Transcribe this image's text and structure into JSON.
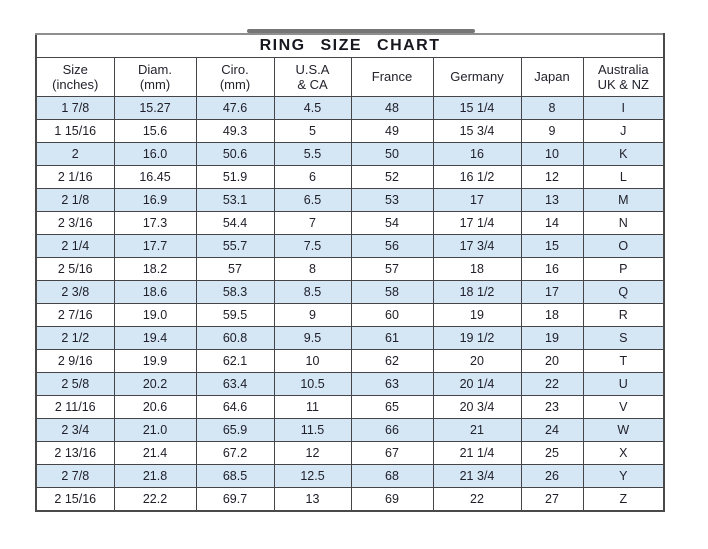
{
  "title": "RING SIZE CHART",
  "colors": {
    "stripe_row": "#d5e6f5",
    "border": "#444449",
    "text": "#20202a"
  },
  "chart_data": {
    "type": "table",
    "title": "RING SIZE CHART",
    "columns": [
      "Size (inches)",
      "Diam. (mm)",
      "Ciro. (mm)",
      "U.S.A & CA",
      "France",
      "Germany",
      "Japan",
      "Australia UK & NZ"
    ],
    "column_header_lines": [
      [
        "Size",
        "(inches)"
      ],
      [
        "Diam.",
        "(mm)"
      ],
      [
        "Ciro.",
        "(mm)"
      ],
      [
        "U.S.A",
        "& CA"
      ],
      [
        "France"
      ],
      [
        "Germany"
      ],
      [
        "Japan"
      ],
      [
        "Australia",
        "UK & NZ"
      ]
    ],
    "rows": [
      [
        "1 7/8",
        "15.27",
        "47.6",
        "4.5",
        "48",
        "15 1/4",
        "8",
        "I"
      ],
      [
        "1 15/16",
        "15.6",
        "49.3",
        "5",
        "49",
        "15 3/4",
        "9",
        "J"
      ],
      [
        "2",
        "16.0",
        "50.6",
        "5.5",
        "50",
        "16",
        "10",
        "K"
      ],
      [
        "2 1/16",
        "16.45",
        "51.9",
        "6",
        "52",
        "16 1/2",
        "12",
        "L"
      ],
      [
        "2 1/8",
        "16.9",
        "53.1",
        "6.5",
        "53",
        "17",
        "13",
        "M"
      ],
      [
        "2 3/16",
        "17.3",
        "54.4",
        "7",
        "54",
        "17 1/4",
        "14",
        "N"
      ],
      [
        "2 1/4",
        "17.7",
        "55.7",
        "7.5",
        "56",
        "17 3/4",
        "15",
        "O"
      ],
      [
        "2 5/16",
        "18.2",
        "57",
        "8",
        "57",
        "18",
        "16",
        "P"
      ],
      [
        "2 3/8",
        "18.6",
        "58.3",
        "8.5",
        "58",
        "18 1/2",
        "17",
        "Q"
      ],
      [
        "2 7/16",
        "19.0",
        "59.5",
        "9",
        "60",
        "19",
        "18",
        "R"
      ],
      [
        "2 1/2",
        "19.4",
        "60.8",
        "9.5",
        "61",
        "19 1/2",
        "19",
        "S"
      ],
      [
        "2 9/16",
        "19.9",
        "62.1",
        "10",
        "62",
        "20",
        "20",
        "T"
      ],
      [
        "2 5/8",
        "20.2",
        "63.4",
        "10.5",
        "63",
        "20 1/4",
        "22",
        "U"
      ],
      [
        "2 11/16",
        "20.6",
        "64.6",
        "11",
        "65",
        "20 3/4",
        "23",
        "V"
      ],
      [
        "2 3/4",
        "21.0",
        "65.9",
        "11.5",
        "66",
        "21",
        "24",
        "W"
      ],
      [
        "2 13/16",
        "21.4",
        "67.2",
        "12",
        "67",
        "21 1/4",
        "25",
        "X"
      ],
      [
        "2 7/8",
        "21.8",
        "68.5",
        "12.5",
        "68",
        "21 3/4",
        "26",
        "Y"
      ],
      [
        "2 15/16",
        "22.2",
        "69.7",
        "13",
        "69",
        "22",
        "27",
        "Z"
      ]
    ],
    "layout_hints": {
      "striped_rows": "odd data rows (1st, 3rd, ...) are light blue",
      "grid": "on"
    }
  }
}
